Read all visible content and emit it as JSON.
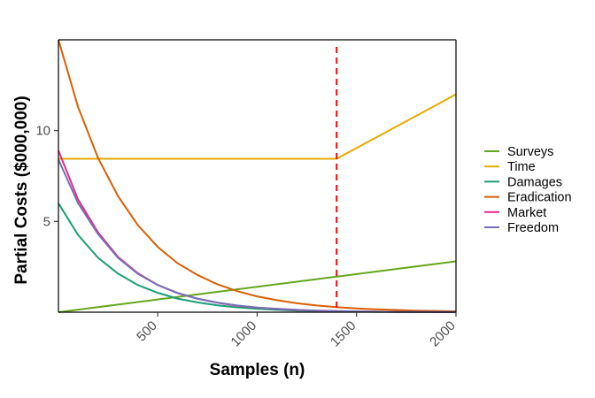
{
  "chart_data": {
    "type": "line",
    "title": "",
    "xlabel": "Samples (n)",
    "ylabel": "Partial Costs ($000,000)",
    "xlim": [
      1,
      2000
    ],
    "ylim": [
      0,
      15
    ],
    "xticks": [
      500,
      1000,
      1500,
      2000
    ],
    "yticks": [
      5,
      10
    ],
    "grid": false,
    "legend_position": "right",
    "vline": {
      "x": 1400,
      "color": "#ff0000",
      "style": "dashed"
    },
    "x": [
      1,
      100,
      200,
      300,
      400,
      500,
      600,
      700,
      800,
      900,
      1000,
      1100,
      1200,
      1300,
      1400,
      1500,
      1600,
      1700,
      1800,
      1900,
      2000
    ],
    "series": [
      {
        "name": "Surveys",
        "color": "#66a61e",
        "values": [
          0.0,
          0.14,
          0.28,
          0.42,
          0.56,
          0.7,
          0.84,
          0.98,
          1.12,
          1.26,
          1.4,
          1.54,
          1.68,
          1.82,
          1.96,
          2.1,
          2.24,
          2.38,
          2.52,
          2.66,
          2.8
        ]
      },
      {
        "name": "Time",
        "color": "#e6ab02",
        "values": [
          8.45,
          8.45,
          8.45,
          8.45,
          8.45,
          8.45,
          8.45,
          8.45,
          8.45,
          8.45,
          8.45,
          8.45,
          8.45,
          8.45,
          8.45,
          9.04,
          9.63,
          10.22,
          10.81,
          11.4,
          12.0
        ]
      },
      {
        "name": "Damages",
        "color": "#1b9e77",
        "values": [
          6.0,
          4.25,
          3.0,
          2.13,
          1.5,
          1.07,
          0.75,
          0.54,
          0.38,
          0.27,
          0.19,
          0.13,
          0.09,
          0.07,
          0.05,
          0.03,
          0.02,
          0.02,
          0.01,
          0.01,
          0.01
        ]
      },
      {
        "name": "Eradication",
        "color": "#d95f02",
        "values": [
          15.0,
          11.3,
          8.5,
          6.4,
          4.8,
          3.6,
          2.7,
          2.05,
          1.54,
          1.16,
          0.87,
          0.66,
          0.49,
          0.37,
          0.28,
          0.21,
          0.16,
          0.12,
          0.09,
          0.07,
          0.05
        ]
      },
      {
        "name": "Market",
        "color": "#e7298a",
        "values": [
          8.9,
          6.2,
          4.4,
          3.05,
          2.15,
          1.5,
          1.05,
          0.74,
          0.52,
          0.36,
          0.25,
          0.18,
          0.12,
          0.09,
          0.06,
          0.04,
          0.03,
          0.02,
          0.02,
          0.01,
          0.01
        ]
      },
      {
        "name": "Freedom",
        "color": "#7570b3",
        "values": [
          8.4,
          6.0,
          4.3,
          3.0,
          2.12,
          1.5,
          1.06,
          0.75,
          0.53,
          0.37,
          0.26,
          0.19,
          0.13,
          0.09,
          0.07,
          0.05,
          0.03,
          0.02,
          0.02,
          0.01,
          0.01
        ]
      }
    ]
  }
}
